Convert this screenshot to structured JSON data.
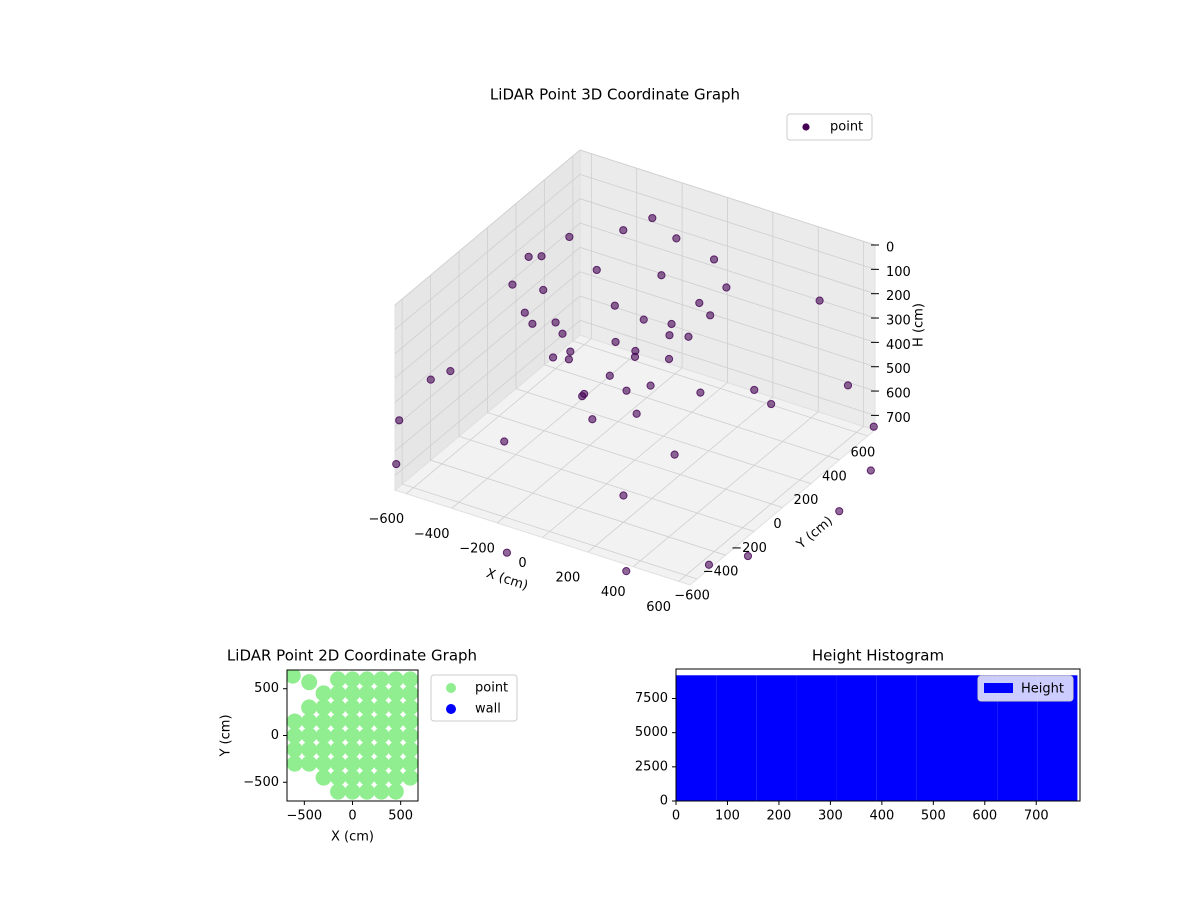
{
  "chart_data": [
    {
      "type": "scatter3d",
      "title": "LiDAR Point 3D Coordinate Graph",
      "xlabel": "X (cm)",
      "ylabel": "Y (cm)",
      "zlabel": "H (cm)",
      "xlim": [
        -650,
        650
      ],
      "ylim": [
        -650,
        650
      ],
      "zlim": [
        0,
        760
      ],
      "z_inverted": true,
      "grid": true,
      "legend": "upper right",
      "xticks": [
        {
          "value": -600,
          "label": "−600"
        },
        {
          "value": -400,
          "label": "−400"
        },
        {
          "value": -200,
          "label": "−200"
        },
        0,
        200,
        400,
        600
      ],
      "yticks": [
        {
          "value": -600,
          "label": "−600"
        },
        {
          "value": -400,
          "label": "−400"
        },
        {
          "value": -200,
          "label": "−200"
        },
        0,
        200,
        400,
        600
      ],
      "zticks": [
        0,
        100,
        200,
        300,
        400,
        500,
        600,
        700
      ],
      "series": [
        {
          "name": "point",
          "color": "#440154",
          "x": [
            300,
            246,
            100,
            -100,
            -300,
            -446,
            -500,
            -446,
            -300,
            -100,
            100,
            246,
            150,
            25,
            -225,
            -350,
            -225,
            25,
            70,
            -50,
            -170,
            -50,
            220,
            126,
            -100,
            -326,
            -420,
            -326,
            -100,
            126,
            100,
            -80,
            -260,
            -80,
            900,
            846,
            689,
            450,
            -900,
            -846,
            -689,
            0,
            450,
            689,
            780,
            -450,
            -600,
            -500,
            200,
            400,
            500,
            -300,
            300,
            600,
            100,
            -200
          ],
          "y": [
            50,
            250,
            396,
            450,
            396,
            250,
            50,
            -150,
            -296,
            -350,
            -296,
            -150,
            0,
            217,
            217,
            0,
            -217,
            -217,
            -100,
            20,
            -100,
            -220,
            25,
            251,
            345,
            251,
            25,
            -201,
            -295,
            -201,
            -50,
            130,
            -50,
            -230,
            0,
            308,
            579,
            779,
            0,
            -308,
            -579,
            -900,
            -779,
            -579,
            -450,
            779,
            300,
            -500,
            -400,
            200,
            500,
            600,
            -200,
            0,
            300,
            -600
          ],
          "z": [
            100,
            100,
            100,
            100,
            100,
            100,
            100,
            100,
            100,
            100,
            100,
            100,
            300,
            300,
            300,
            300,
            300,
            300,
            500,
            500,
            500,
            500,
            200,
            200,
            200,
            200,
            200,
            200,
            200,
            200,
            400,
            400,
            400,
            400,
            700,
            700,
            700,
            700,
            700,
            700,
            700,
            700,
            700,
            700,
            700,
            700,
            250,
            300,
            650,
            450,
            200,
            150,
            550,
            350,
            600,
            450
          ]
        }
      ]
    },
    {
      "type": "scatter",
      "title": "LiDAR Point 2D Coordinate Graph",
      "xlabel": "X (cm)",
      "ylabel": "Y (cm)",
      "xlim": [
        -680,
        680
      ],
      "ylim": [
        -700,
        700
      ],
      "xticks": [
        {
          "value": -500,
          "label": "−500"
        },
        0,
        500
      ],
      "yticks": [
        {
          "value": -500,
          "label": "−500"
        },
        0,
        500
      ],
      "series": [
        {
          "name": "point",
          "color": "#90ee90",
          "x": [
            -600,
            -600,
            -600,
            -600,
            -450,
            -450,
            -450,
            -450,
            -450,
            -300,
            -300,
            -300,
            -300,
            -300,
            -300,
            -300,
            -150,
            -150,
            -150,
            -150,
            -150,
            -150,
            -150,
            -150,
            -150,
            0,
            0,
            0,
            0,
            0,
            0,
            0,
            0,
            0,
            150,
            150,
            150,
            150,
            150,
            150,
            150,
            150,
            150,
            300,
            300,
            300,
            300,
            300,
            300,
            300,
            300,
            300,
            450,
            450,
            450,
            450,
            450,
            450,
            450,
            450,
            450,
            600,
            600,
            600,
            600,
            600,
            600,
            600,
            600,
            -620,
            -450
          ],
          "y": [
            -300,
            -150,
            0,
            150,
            -300,
            -150,
            0,
            150,
            300,
            -450,
            -300,
            -150,
            0,
            150,
            300,
            450,
            -600,
            -450,
            -300,
            -150,
            0,
            150,
            300,
            450,
            600,
            -600,
            -450,
            -300,
            -150,
            0,
            150,
            300,
            450,
            600,
            -600,
            -450,
            -300,
            -150,
            0,
            150,
            300,
            450,
            600,
            -600,
            -450,
            -300,
            -150,
            0,
            150,
            300,
            450,
            600,
            -600,
            -450,
            -300,
            -150,
            0,
            150,
            300,
            450,
            600,
            -450,
            -300,
            -150,
            0,
            150,
            300,
            450,
            600,
            640,
            570
          ]
        },
        {
          "name": "wall",
          "color": "#0000ff",
          "x": [],
          "y": []
        }
      ]
    },
    {
      "type": "histogram",
      "title": "Height Histogram",
      "color": "#0000ff",
      "legend": "upper right",
      "name": "Height",
      "bins": [
        0,
        78,
        156,
        234,
        312,
        390,
        468,
        546,
        624,
        702,
        780
      ],
      "values": [
        9200,
        9200,
        9200,
        9200,
        9200,
        9200,
        9200,
        9200,
        9200,
        9200
      ],
      "xlim": [
        0,
        785
      ],
      "ylim": [
        0,
        9660
      ],
      "xticks": [
        0,
        100,
        200,
        300,
        400,
        500,
        600,
        700
      ],
      "yticks": [
        0,
        2500,
        5000,
        7500
      ]
    }
  ]
}
